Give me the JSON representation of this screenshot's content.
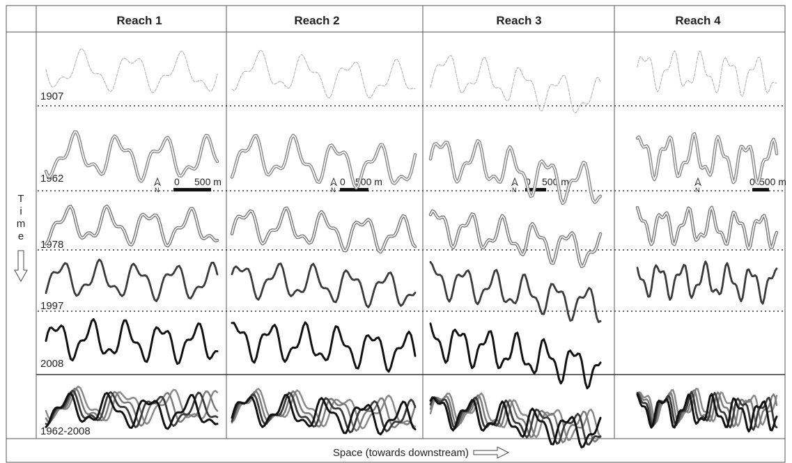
{
  "columns": [
    "Reach 1",
    "Reach 2",
    "Reach 3",
    "Reach 4"
  ],
  "rows": [
    "1907",
    "1962",
    "1978",
    "1997",
    "2008",
    "1962-2008"
  ],
  "time_axis": {
    "label": "Time"
  },
  "space_axis": {
    "label": "Space (towards downstream)"
  },
  "scale_bar": {
    "zero": "0",
    "distance": "500 m",
    "north": "N"
  },
  "colors": {
    "border": "#555555",
    "c1907": "#b8b8b8",
    "c1962": "#8a8a8a",
    "c1978": "#7a7a7a",
    "c1997": "#3a3a3a",
    "c2008": "#111111"
  }
}
